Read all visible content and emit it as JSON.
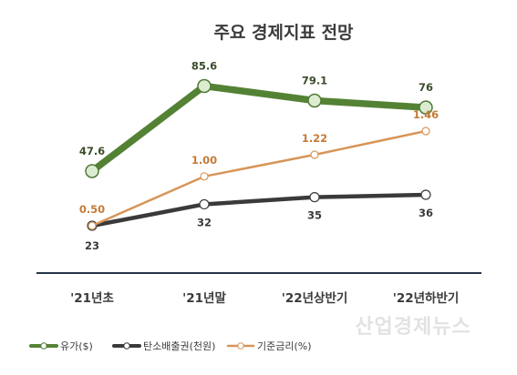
{
  "chart_data": {
    "type": "line",
    "title": "주요 경제지표 전망",
    "categories": [
      "'21년초",
      "'21년말",
      "'22년상반기",
      "'22년하반기"
    ],
    "series": [
      {
        "name": "유가($)",
        "values": [
          47.6,
          85.6,
          79.1,
          76
        ],
        "labels": [
          "47.6",
          "85.6",
          "79.1",
          "76"
        ],
        "color": "#548235"
      },
      {
        "name": "탄소배출권(천원)",
        "values": [
          23,
          32,
          35,
          36
        ],
        "labels": [
          "23",
          "32",
          "35",
          "36"
        ],
        "color": "#3a3a3a"
      },
      {
        "name": "기준금리(%)",
        "values": [
          0.5,
          1.0,
          1.22,
          1.46
        ],
        "labels": [
          "0.50",
          "1.00",
          "1.22",
          "1.46"
        ],
        "color": "#d79558"
      }
    ],
    "legend_position": "bottom-left",
    "grid": false
  },
  "watermark": "산업경제뉴스"
}
